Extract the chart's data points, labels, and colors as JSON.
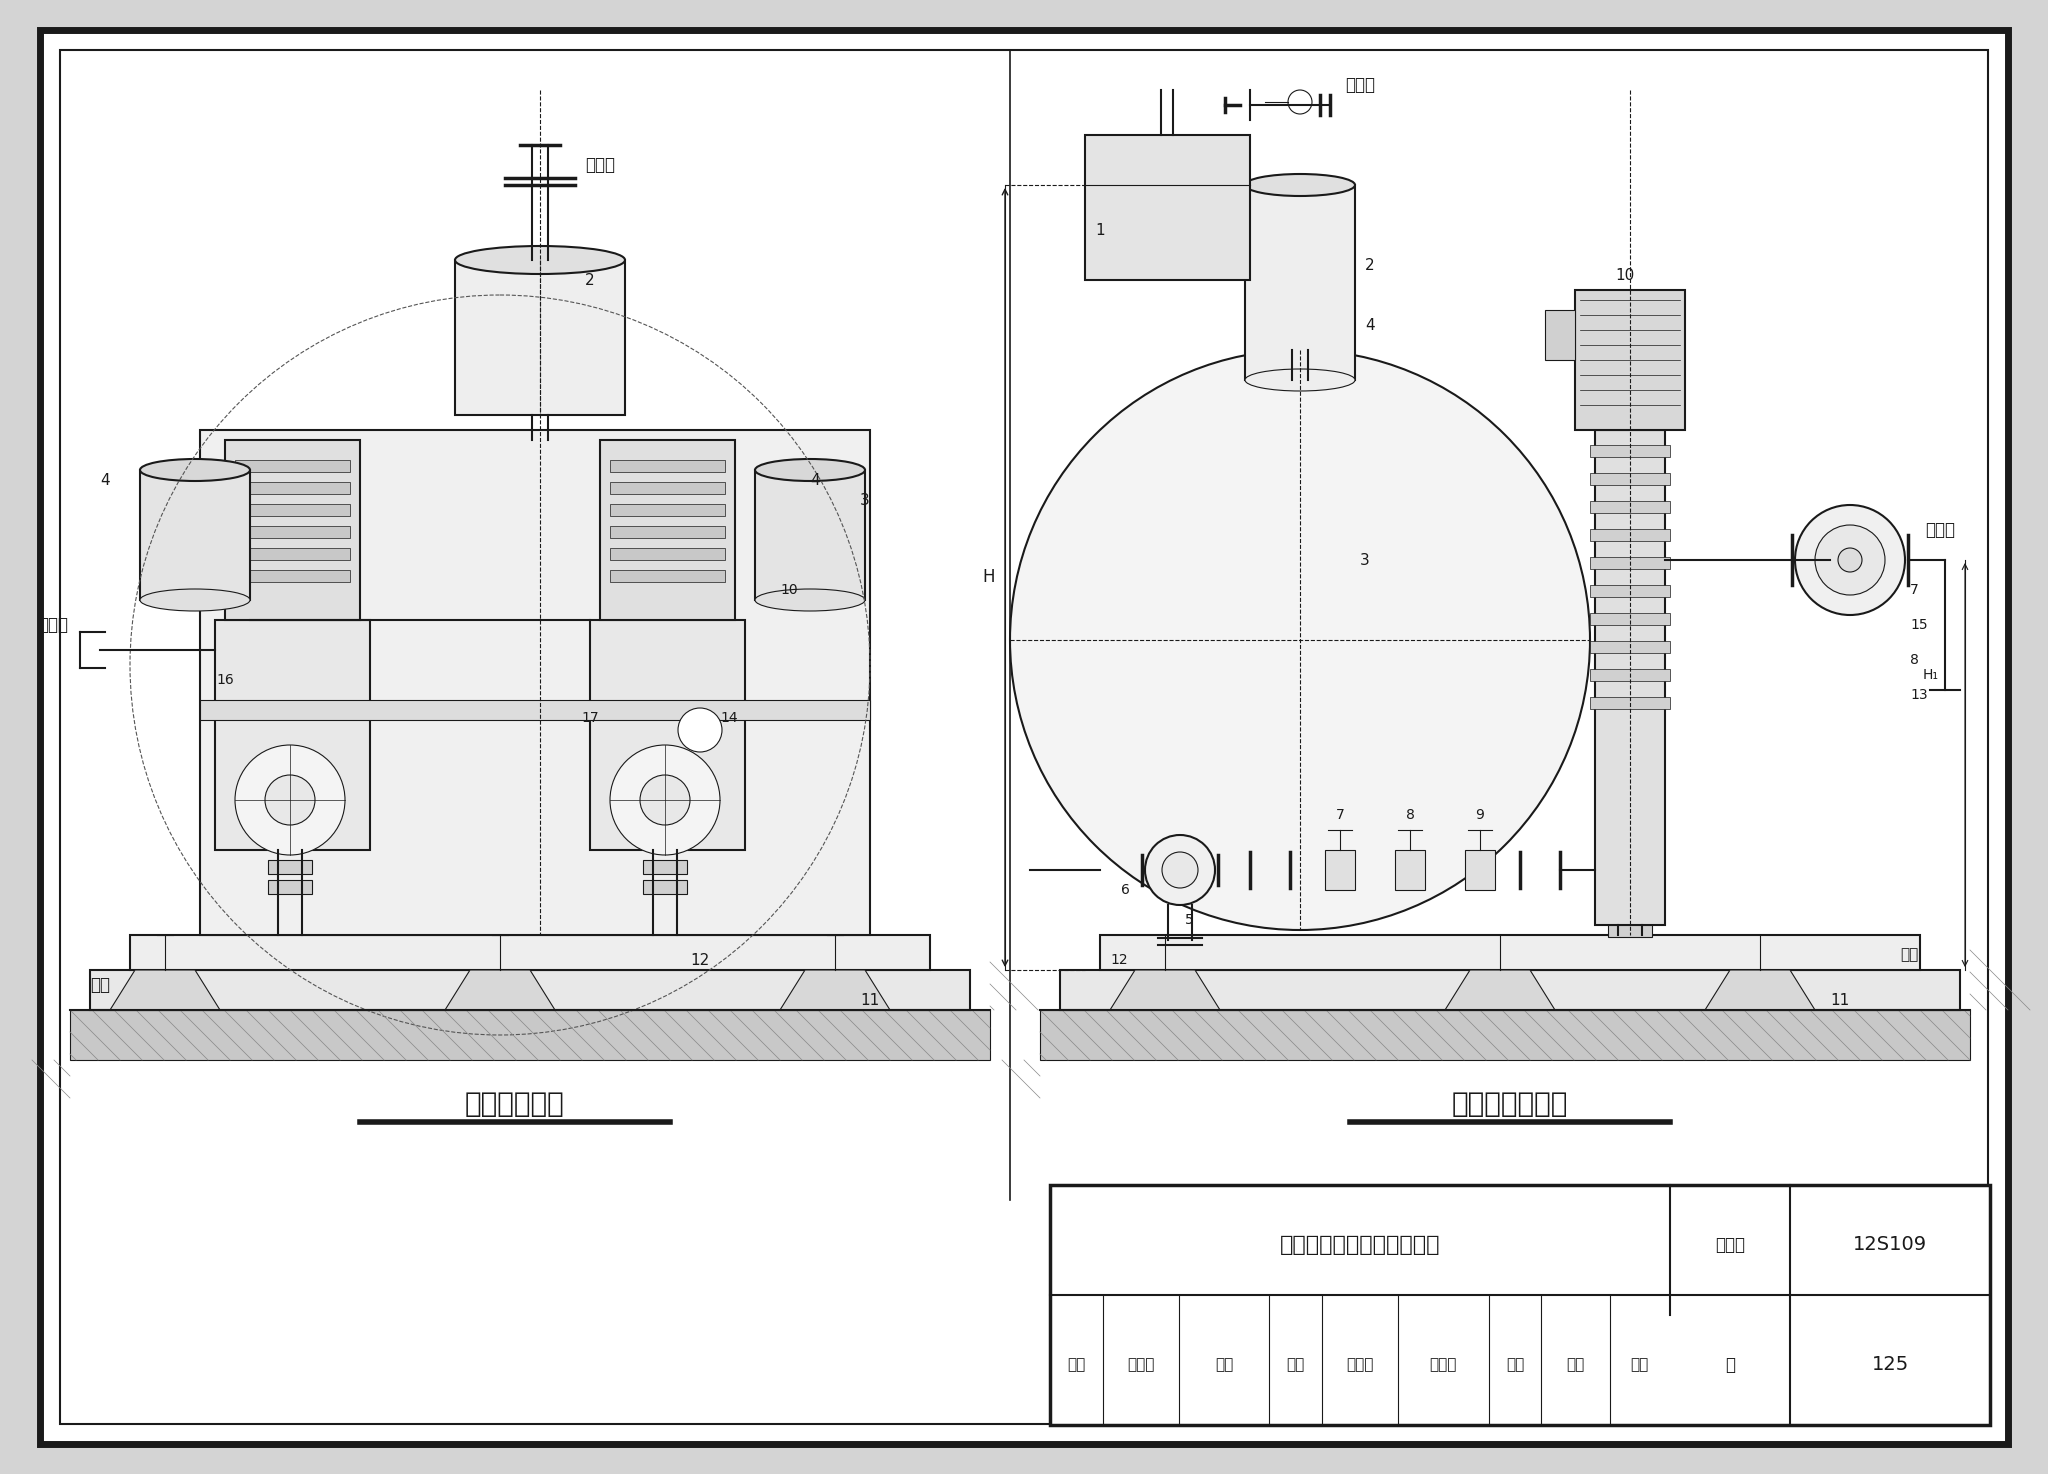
{
  "bg_color": "#d4d4d4",
  "page_bg": "#ffffff",
  "lc": "#1a1a1a",
  "title_left": "设备正立面图",
  "title_right": "设备左侧立面图",
  "table_title": "高位调蓄式供水设备立面图",
  "table_col_label": "图集号",
  "table_col_value": "12S109",
  "table_page_label": "页",
  "table_page_value": "125",
  "row2_items": [
    "审核",
    "李海珠",
    "柏华",
    "校对",
    "杜文欣",
    "杜文欣",
    "设计",
    "王芳",
    "工号",
    "页",
    "125"
  ]
}
